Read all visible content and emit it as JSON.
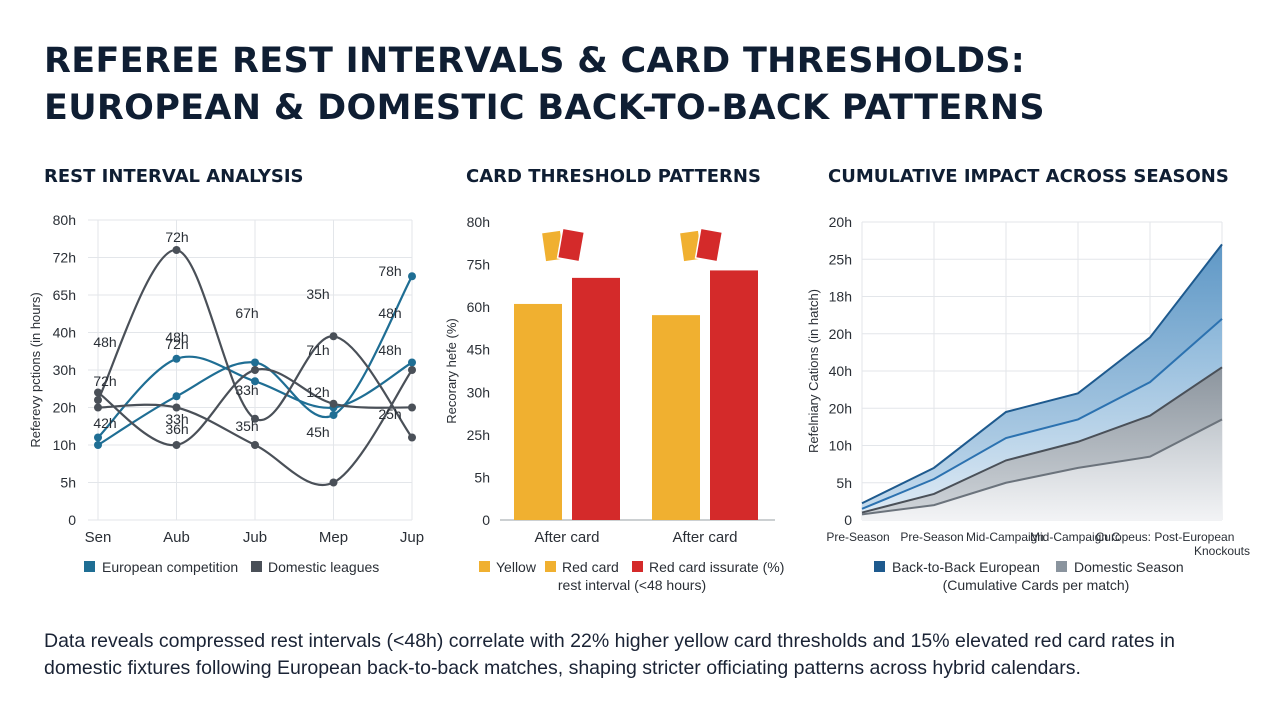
{
  "title_line1": "REFEREE REST INTERVALS & CARD THRESHOLDS:",
  "title_line2": "EUROPEAN & DOMESTIC BACK-TO-BACK PATTERNS",
  "footer": "Data reveals compressed rest intervals (<48h) correlate with 22% higher yellow card thresholds and 15% elevated red card rates in domestic fixtures following European back-to-back matches, shaping stricter officiating patterns across hybrid calendars.",
  "colors": {
    "european": "#1f6e94",
    "domestic": "#4a5058",
    "yellow": "#f0b030",
    "red": "#d42a2a",
    "navy": "#1e5a8e",
    "gray": "#8a949e"
  },
  "chart_data": [
    {
      "type": "line",
      "title": "REST INTERVAL ANALYSIS",
      "ylabel": "Referevy pctions (in hours)",
      "categories": [
        "Sen",
        "Aub",
        "Jub",
        "Mep",
        "Jup"
      ],
      "y_ticks": [
        "0",
        "5h",
        "10h",
        "20h",
        "30h",
        "40h",
        "65h",
        "72h",
        "80h"
      ],
      "ylim": [
        0,
        80
      ],
      "grid": true,
      "legend": [
        "European competition",
        "Domestic leagues"
      ],
      "series": [
        {
          "group": "european",
          "values": [
            20,
            33,
            42,
            28,
            65
          ]
        },
        {
          "group": "european",
          "values": [
            22,
            43,
            37,
            30,
            42
          ]
        },
        {
          "group": "domestic",
          "values": [
            32,
            72,
            27,
            49,
            22
          ]
        },
        {
          "group": "domestic",
          "values": [
            34,
            20,
            40,
            31,
            30
          ]
        },
        {
          "group": "domestic",
          "values": [
            30,
            30,
            20,
            10,
            40
          ]
        }
      ],
      "annotations": [
        "48h",
        "72h",
        "72h",
        "48h",
        "72h",
        "33h",
        "36h",
        "48h",
        "67h",
        "33h",
        "35h",
        "35h",
        "71h",
        "12h",
        "45h",
        "78h",
        "48h",
        "42h",
        "25h"
      ]
    },
    {
      "type": "bar",
      "title": "CARD THRESHOLD PATTERNS",
      "ylabel": "Recorary hefe (%)",
      "categories": [
        "After card",
        "After card"
      ],
      "y_ticks": [
        "0",
        "5h",
        "25h",
        "30h",
        "45h",
        "60h",
        "75h",
        "80h"
      ],
      "ylim": [
        0,
        80
      ],
      "series": [
        {
          "name": "Yellow",
          "values": [
            58,
            55
          ]
        },
        {
          "name": "Red card",
          "values": [
            65,
            67
          ]
        }
      ],
      "legend": [
        "Yellow",
        "Red card",
        "Red card issurate (%)"
      ],
      "legend_sub": "rest interval (<48 hours)"
    },
    {
      "type": "area",
      "title": "CUMULATIVE IMPACT ACROSS SEASONS",
      "ylabel": "Refelniary Cations (in hatch)",
      "categories": [
        "Pre-Season",
        "Pre-Season",
        "Mid-Campaign",
        "Mid-Campaign C",
        "Curopeus: Post-European",
        "Knockouts"
      ],
      "y_ticks": [
        "0",
        "5h",
        "10h",
        "20h",
        "40h",
        "20h",
        "18h",
        "25h",
        "20h"
      ],
      "ylim": [
        0,
        8
      ],
      "legend": [
        "Back-to-Back European",
        "Domestic Season"
      ],
      "legend_sub": "(Cumulative Cards per match)",
      "series": [
        {
          "name": "Back-to-Back European",
          "values": [
            0.45,
            1.4,
            2.9,
            3.4,
            4.9,
            7.4
          ]
        },
        {
          "values": [
            0.3,
            1.1,
            2.2,
            2.7,
            3.7,
            5.4
          ]
        },
        {
          "name": "Domestic Season",
          "values": [
            0.2,
            0.7,
            1.6,
            2.1,
            2.8,
            4.1
          ]
        },
        {
          "values": [
            0.15,
            0.4,
            1.0,
            1.4,
            1.7,
            2.7
          ]
        }
      ]
    }
  ]
}
